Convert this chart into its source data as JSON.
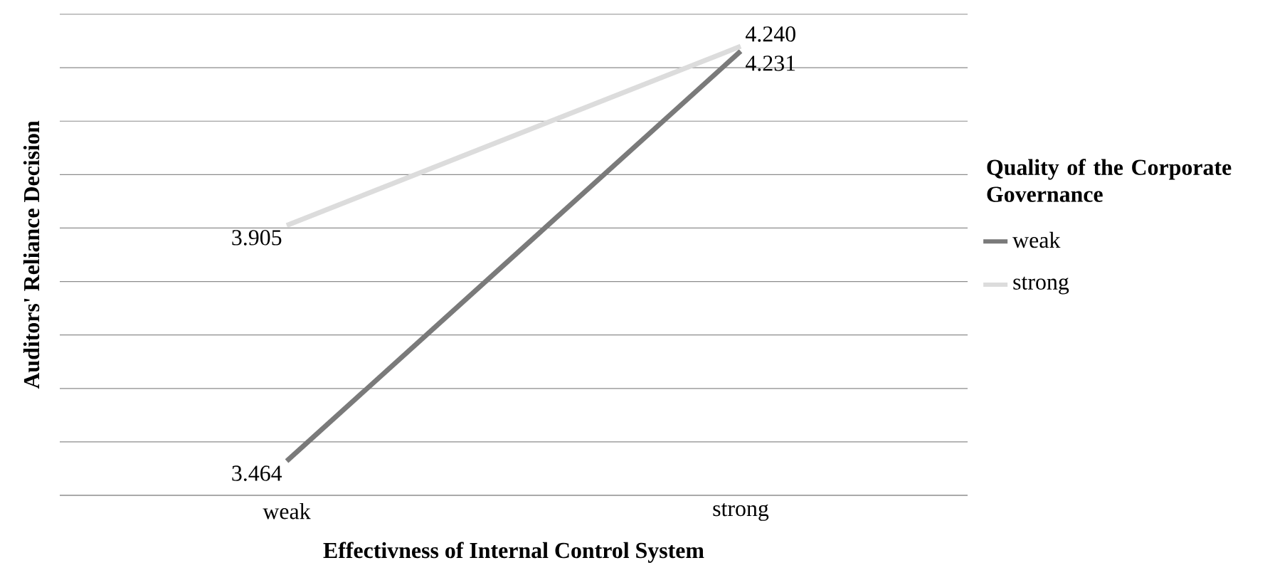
{
  "chart_data": {
    "type": "line",
    "xlabel": "Effectivness of Internal Control System",
    "ylabel": "Auditors' Reliance Decision",
    "legend_title": "Quality of the Corporate Governance",
    "categories": [
      "weak",
      "strong"
    ],
    "series": [
      {
        "name": "weak",
        "color": "#7a7a7a",
        "values": [
          3.464,
          4.231
        ],
        "value_labels": [
          "3.464",
          "4.231"
        ]
      },
      {
        "name": "strong",
        "color": "#dcdcdc",
        "values": [
          3.905,
          4.24
        ],
        "value_labels": [
          "3.905",
          "4.240"
        ]
      }
    ],
    "ylim": [
      3.4,
      4.3
    ],
    "yticks": [
      {
        "value": 3.4,
        "label": null
      },
      {
        "value": 3.5,
        "label": null
      },
      {
        "value": 3.6,
        "label": null
      },
      {
        "value": 3.7,
        "label": null
      },
      {
        "value": 3.8,
        "label": null
      },
      {
        "value": 3.9,
        "label": null
      },
      {
        "value": 4.0,
        "label": null
      },
      {
        "value": 4.1,
        "label": null
      },
      {
        "value": 4.2,
        "label": null
      },
      {
        "value": 4.3,
        "label": null
      }
    ],
    "tick_labels": "x",
    "grid": "y",
    "legend": "right",
    "marker": "none",
    "line_style": "solid"
  }
}
